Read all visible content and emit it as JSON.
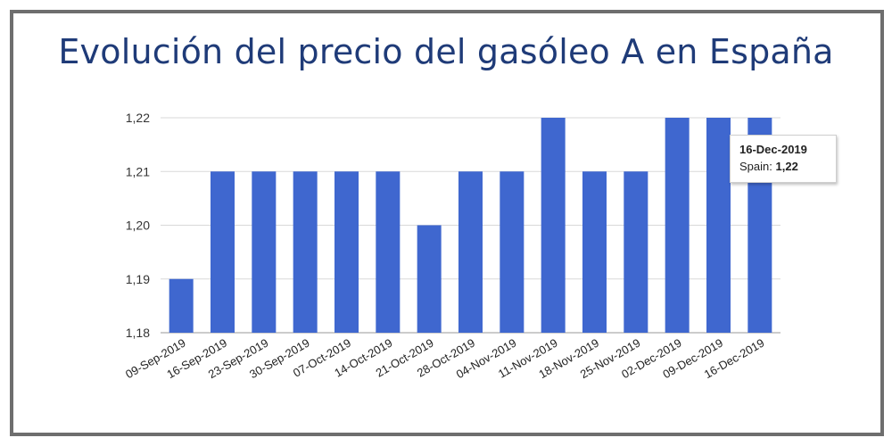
{
  "chart_data": {
    "type": "bar",
    "title": "Evolución del precio del gasóleo A en España",
    "xlabel": "",
    "ylabel": "",
    "ylim": [
      1.18,
      1.22
    ],
    "yticks": [
      "1,18",
      "1,19",
      "1,20",
      "1,21",
      "1,22"
    ],
    "grid": true,
    "bar_color": "#3f67cf",
    "categories": [
      "09-Sep-2019",
      "16-Sep-2019",
      "23-Sep-2019",
      "30-Sep-2019",
      "07-Oct-2019",
      "14-Oct-2019",
      "21-Oct-2019",
      "28-Oct-2019",
      "04-Nov-2019",
      "11-Nov-2019",
      "18-Nov-2019",
      "25-Nov-2019",
      "02-Dec-2019",
      "09-Dec-2019",
      "16-Dec-2019"
    ],
    "series": [
      {
        "name": "Spain",
        "values": [
          1.19,
          1.21,
          1.21,
          1.21,
          1.21,
          1.21,
          1.2,
          1.21,
          1.21,
          1.22,
          1.21,
          1.21,
          1.22,
          1.22,
          1.22
        ]
      }
    ],
    "tooltip": {
      "date": "16-Dec-2019",
      "label": "Spain:",
      "value": "1,22"
    }
  }
}
